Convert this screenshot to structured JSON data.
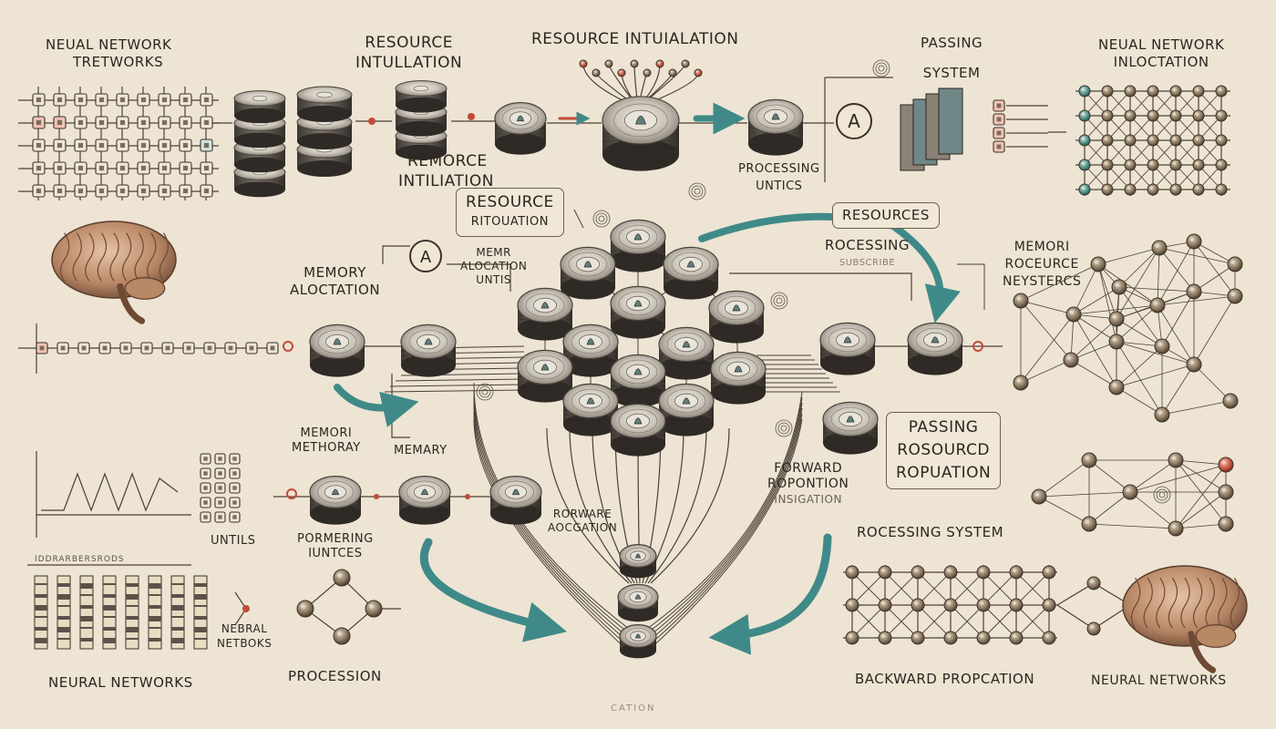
{
  "labels": {
    "top_left": [
      "NEUAL NETWORK",
      "TRETWORKS"
    ],
    "top_resource": [
      "RESOURCE",
      "INTULLATION"
    ],
    "title": "RESOURCE INTUIALATION",
    "passing_system": [
      "PASSING",
      "SYSTEM"
    ],
    "top_right": [
      "NEUAL NETWORK",
      "INLOCTATION"
    ],
    "remorce": [
      "REMORCE",
      "INTILIATION"
    ],
    "processing_untics": [
      "PROCESSING",
      "UNTICS"
    ],
    "resource_box": [
      "RESOURCE",
      "RITOUATION"
    ],
    "resources_box": "RESOURCES",
    "memory_alloc": [
      "MEMORY",
      "ALOCTATION"
    ],
    "alloc_units": [
      "MEMR",
      "ALOCATION",
      "UNTIS"
    ],
    "roccessing": [
      "ROCESSING",
      "SUBSCRIBE"
    ],
    "memori_right": [
      "MEMORI",
      "ROCEURCE",
      "NEYSTERCS"
    ],
    "memori_left": [
      "MEMORI",
      "METHORAY"
    ],
    "memary": "MEMARY",
    "forward_prop": [
      "FORWARD",
      "ROPONTION",
      "INSIGATION"
    ],
    "passing_box": [
      "PASSING",
      "ROSOURCD",
      "ROPUATION"
    ],
    "untils": "UNTILS",
    "pormering": [
      "PORMERING",
      "IUNTCES"
    ],
    "rorware": [
      "RORWARE",
      "AOCGATION"
    ],
    "roccessing_system": "ROCESSING SYSTEM",
    "nebral": [
      "NEBRAL",
      "NETBOKS"
    ],
    "neural_left": "NEURAL NETWORKS",
    "procession": "PROCESSION",
    "backward": "BACKWARD PROPCATION",
    "neural_right": "NEURAL NETWORKS",
    "bottom_faint": "CATION",
    "bottom_left_faint": "IDDRARBERSRODS",
    "node_letter": "A"
  },
  "colors": {
    "background": "#ede4d3",
    "ink": "#2b2621",
    "line": "#4b4037",
    "teal": "#3f8a88",
    "red": "#c24a3a",
    "node_dark": "#5c5650",
    "node_light": "#d8d2c6"
  }
}
